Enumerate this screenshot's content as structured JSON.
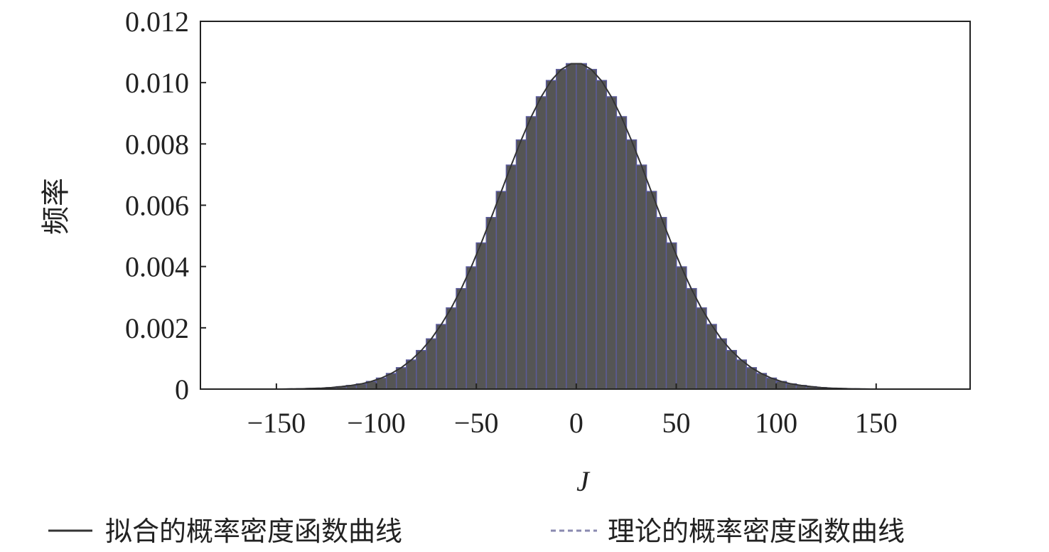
{
  "chart_data": {
    "type": "bar",
    "title": "",
    "xlabel": "J",
    "ylabel": "频率",
    "xlim": [
      -188,
      197
    ],
    "ylim": [
      0,
      0.012
    ],
    "grid": false,
    "x_ticks": [
      "−150",
      "−100",
      "−50",
      "0",
      "50",
      "100",
      "150"
    ],
    "x_tick_values": [
      -150,
      -100,
      -50,
      0,
      50,
      100,
      150
    ],
    "y_ticks": [
      "0",
      "0.002",
      "0.004",
      "0.006",
      "0.008",
      "0.010",
      "0.012"
    ],
    "y_tick_values": [
      0,
      0.002,
      0.004,
      0.006,
      0.008,
      0.01,
      0.012
    ],
    "histogram": {
      "bin_width": 5,
      "bin_centers": [
        -172.5,
        -167.5,
        -162.5,
        -157.5,
        -152.5,
        -147.5,
        -142.5,
        -137.5,
        -132.5,
        -127.5,
        -122.5,
        -117.5,
        -112.5,
        -107.5,
        -102.5,
        -97.5,
        -92.5,
        -87.5,
        -82.5,
        -77.5,
        -72.5,
        -67.5,
        -62.5,
        -57.5,
        -52.5,
        -47.5,
        -42.5,
        -37.5,
        -32.5,
        -27.5,
        -22.5,
        -17.5,
        -12.5,
        -7.5,
        -2.5,
        2.5,
        7.5,
        12.5,
        17.5,
        22.5,
        27.5,
        32.5,
        37.5,
        42.5,
        47.5,
        52.5,
        57.5,
        62.5,
        67.5,
        72.5,
        77.5,
        82.5,
        87.5,
        92.5,
        97.5,
        102.5,
        107.5,
        112.5,
        117.5,
        122.5,
        127.5,
        132.5,
        137.5,
        142.5,
        147.5,
        152.5,
        157.5,
        162.5,
        167.5,
        172.5
      ],
      "values": [
        0,
        0,
        0,
        0,
        0,
        0,
        5e-06,
        1e-05,
        2e-05,
        3e-05,
        5e-05,
        8e-05,
        0.00012,
        0.00017,
        0.00025,
        0.00036,
        0.00051,
        0.0007,
        0.00095,
        0.00126,
        0.00164,
        0.00211,
        0.00265,
        0.00328,
        0.00399,
        0.00477,
        0.0056,
        0.00645,
        0.00731,
        0.00813,
        0.00889,
        0.00954,
        0.01007,
        0.01043,
        0.01062,
        0.01062,
        0.01043,
        0.01007,
        0.00954,
        0.00889,
        0.00813,
        0.00731,
        0.00645,
        0.0056,
        0.00477,
        0.00399,
        0.00328,
        0.00265,
        0.00211,
        0.00164,
        0.00126,
        0.00095,
        0.0007,
        0.00051,
        0.00036,
        0.00025,
        0.00017,
        0.00012,
        8e-05,
        5e-05,
        3e-05,
        2e-05,
        1e-05,
        5e-06,
        0,
        0,
        0,
        0,
        0,
        0
      ]
    },
    "series": [
      {
        "name": "拟合的概率密度函数曲线",
        "style": "solid",
        "color": "#333333"
      },
      {
        "name": "理论的概率密度函数曲线",
        "style": "dashed",
        "color": "#8a8ab0"
      }
    ],
    "colors": {
      "bars": "#555555",
      "bar_edge": "#5b5b9c"
    },
    "legend_position": "bottom"
  }
}
